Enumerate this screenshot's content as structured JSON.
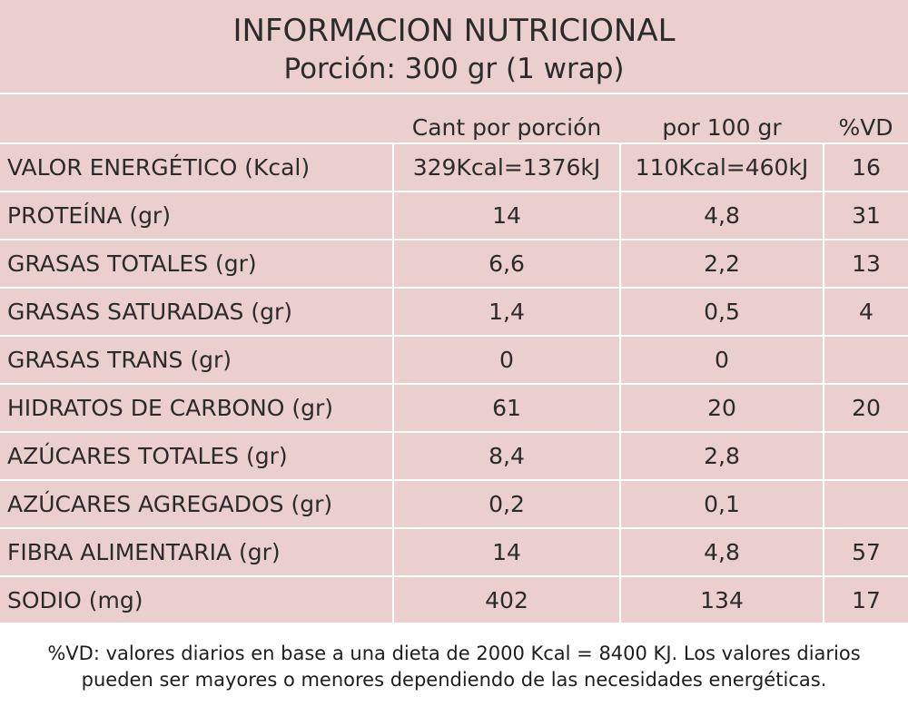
{
  "header": {
    "title": "INFORMACION NUTRICIONAL",
    "subtitle": "Porción: 300 gr (1 wrap)"
  },
  "columns": [
    "",
    "Cant por porción",
    "por 100 gr",
    "%VD"
  ],
  "rows": [
    {
      "name": "VALOR ENERGÉTICO  (Kcal)",
      "per_portion": "329Kcal=1376kJ",
      "per_100g": "110Kcal=460kJ",
      "vd": "16"
    },
    {
      "name": "PROTEÍNA (gr)",
      "per_portion": "14",
      "per_100g": "4,8",
      "vd": "31"
    },
    {
      "name": "GRASAS TOTALES (gr)",
      "per_portion": "6,6",
      "per_100g": "2,2",
      "vd": "13"
    },
    {
      "name": "GRASAS SATURADAS (gr)",
      "per_portion": "1,4",
      "per_100g": "0,5",
      "vd": "4"
    },
    {
      "name": "GRASAS TRANS (gr)",
      "per_portion": "0",
      "per_100g": "0",
      "vd": ""
    },
    {
      "name": "HIDRATOS DE CARBONO (gr)",
      "per_portion": "61",
      "per_100g": "20",
      "vd": "20"
    },
    {
      "name": "AZÚCARES TOTALES (gr)",
      "per_portion": "8,4",
      "per_100g": "2,8",
      "vd": ""
    },
    {
      "name": "AZÚCARES AGREGADOS (gr)",
      "per_portion": "0,2",
      "per_100g": "0,1",
      "vd": ""
    },
    {
      "name": "FIBRA ALIMENTARIA (gr)",
      "per_portion": "14",
      "per_100g": "4,8",
      "vd": "57"
    },
    {
      "name": "SODIO (mg)",
      "per_portion": "402",
      "per_100g": "134",
      "vd": "17"
    }
  ],
  "footnote": {
    "line1": "%VD:  valores diarios en base a una dieta de 2000 Kcal = 8400 KJ. Los valores diarios",
    "line2": "pueden ser mayores o menores dependiendo de las necesidades energéticas."
  },
  "colors": {
    "panel_background": "#ebcfcf",
    "grid_lines": "#ffffff",
    "text": "#2b2b2b"
  }
}
